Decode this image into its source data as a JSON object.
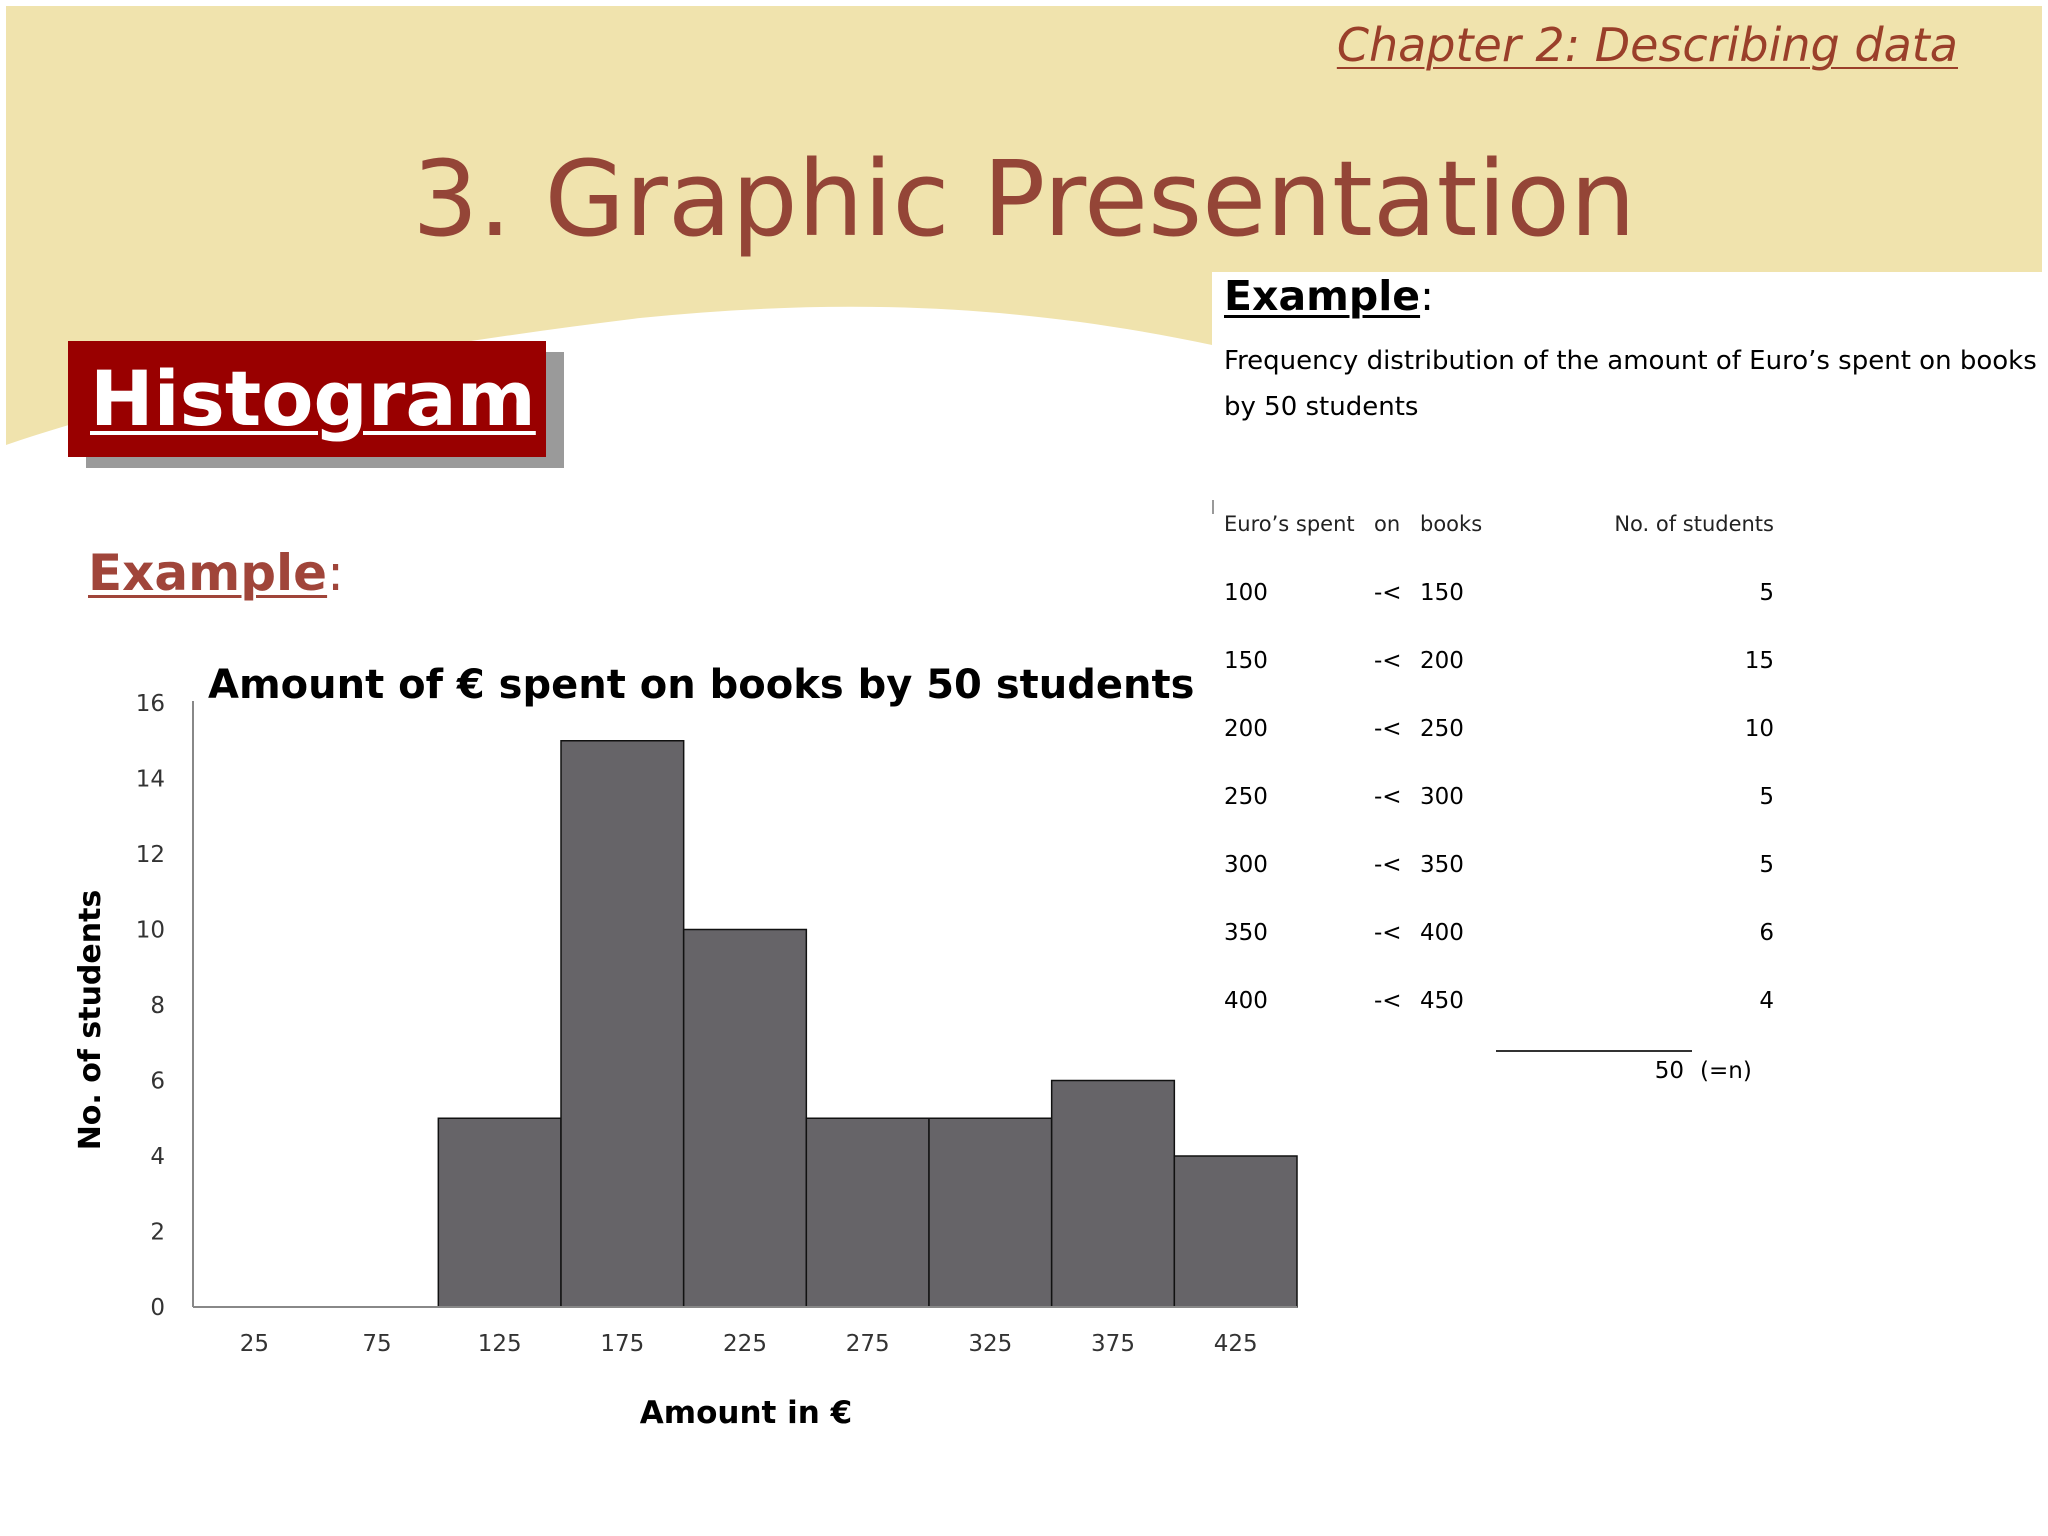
{
  "slide": {
    "chapter_label": "Chapter 2: Describing data",
    "title": "3. Graphic Presentation",
    "section_label": "Histogram",
    "example_label": "Example",
    "colon": ":"
  },
  "colors": {
    "banner": "#f0e3ad",
    "title": "#944537",
    "section_box": "#990000",
    "bars": "#666468"
  },
  "table": {
    "example_label": "Example",
    "colon": ":",
    "subtitle": "Frequency distribution of the amount of Euro’s spent on books by 50 students",
    "headers": {
      "c1": "Euro’s spent",
      "c2": "on",
      "c3": "books",
      "c4": "No. of students"
    },
    "rows": [
      {
        "from": "100",
        "sep": "-<",
        "to": "150",
        "count": "5"
      },
      {
        "from": "150",
        "sep": "-<",
        "to": "200",
        "count": "15"
      },
      {
        "from": "200",
        "sep": "-<",
        "to": "250",
        "count": "10"
      },
      {
        "from": "250",
        "sep": "-<",
        "to": "300",
        "count": "5"
      },
      {
        "from": "300",
        "sep": "-<",
        "to": "350",
        "count": "5"
      },
      {
        "from": "350",
        "sep": "-<",
        "to": "400",
        "count": "6"
      },
      {
        "from": "400",
        "sep": "-<",
        "to": "450",
        "count": "4"
      }
    ],
    "total": "50",
    "total_note": "(=n)"
  },
  "chart_data": {
    "type": "bar",
    "title": "Amount of € spent on books by 50 students",
    "xlabel": "Amount in €",
    "ylabel": "No. of students",
    "categories": [
      "25",
      "75",
      "125",
      "175",
      "225",
      "275",
      "325",
      "375",
      "425"
    ],
    "values": [
      0,
      0,
      5,
      15,
      10,
      5,
      5,
      6,
      4
    ],
    "ylim": [
      0,
      16
    ],
    "yticks": [
      "0",
      "2",
      "4",
      "6",
      "8",
      "10",
      "12",
      "14",
      "16"
    ],
    "grid": false,
    "legend": "none",
    "bar_gap": 0
  }
}
